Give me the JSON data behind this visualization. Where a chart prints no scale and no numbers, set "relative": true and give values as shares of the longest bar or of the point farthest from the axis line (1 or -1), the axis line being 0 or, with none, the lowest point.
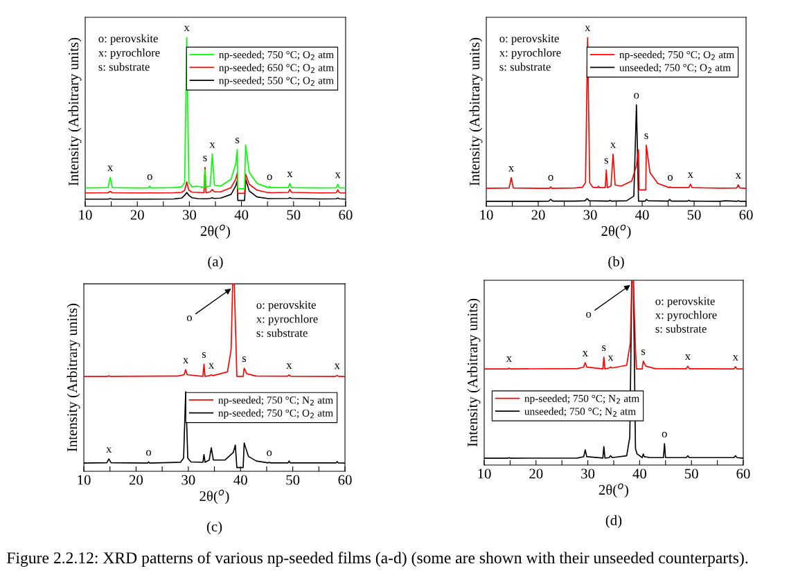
{
  "chart_data": [
    {
      "type": "line",
      "relative": true,
      "xlabel": "2θ($^{o}$)",
      "ylabel": "Intensity (Arbitrary units)",
      "xlim": [
        10,
        60
      ],
      "xticks": [
        10,
        {
          "value": 15,
          "label": null
        },
        20,
        {
          "value": 25,
          "label": null
        },
        30,
        {
          "value": 35,
          "label": null
        },
        40,
        {
          "value": 45,
          "label": null
        },
        50,
        {
          "value": 55,
          "label": null
        },
        60
      ],
      "legend": "top right",
      "series": [
        {
          "name": "np-seeded; 750 °C; O$_{2}$ atm",
          "color": "#00ff00",
          "x": [
            10,
            14.4,
            14.8,
            15.2,
            20,
            22.2,
            22.4,
            22.6,
            27,
            28.5,
            29.1,
            29.5,
            29.9,
            30.5,
            31.6,
            32.8,
            33.0,
            33.2,
            34.0,
            34.4,
            34.8,
            36,
            38.0,
            38.9,
            39.2,
            39.3,
            40.6,
            40.8,
            41.5,
            43,
            45.2,
            45.4,
            45.6,
            49.0,
            49.3,
            49.6,
            55,
            58.2,
            58.5,
            58.8,
            60
          ],
          "values": [
            0.108,
            0.11,
            0.171,
            0.11,
            0.108,
            0.108,
            0.119,
            0.108,
            0.11,
            0.115,
            0.14,
            1.0,
            0.14,
            0.115,
            0.118,
            0.112,
            0.217,
            0.113,
            0.12,
            0.309,
            0.125,
            0.12,
            0.16,
            0.25,
            0.336,
            0.103,
            0.103,
            0.363,
            0.2,
            0.135,
            0.11,
            0.118,
            0.11,
            0.11,
            0.135,
            0.11,
            0.108,
            0.109,
            0.13,
            0.109,
            0.108
          ]
        },
        {
          "name": "np-seeded; 650 °C; O$_{2}$ atm",
          "color": "#ff0000",
          "x": [
            10,
            14.4,
            14.8,
            15.2,
            20,
            22.2,
            22.4,
            22.6,
            27,
            28.5,
            29.1,
            29.5,
            29.9,
            30.5,
            31.6,
            32.8,
            33.0,
            33.2,
            34.0,
            34.4,
            34.8,
            36,
            38.0,
            38.9,
            39.2,
            39.3,
            40.6,
            40.8,
            41.5,
            43,
            45.2,
            45.4,
            45.6,
            49.0,
            49.3,
            49.6,
            55,
            58.2,
            58.5,
            58.8,
            60
          ],
          "values": [
            0.079,
            0.08,
            0.088,
            0.08,
            0.079,
            0.079,
            0.08,
            0.079,
            0.08,
            0.082,
            0.095,
            0.144,
            0.095,
            0.083,
            0.082,
            0.08,
            0.23,
            0.08,
            0.085,
            0.099,
            0.085,
            0.085,
            0.11,
            0.16,
            0.197,
            0.076,
            0.076,
            0.19,
            0.13,
            0.095,
            0.08,
            0.082,
            0.08,
            0.082,
            0.1,
            0.082,
            0.079,
            0.08,
            0.097,
            0.08,
            0.079
          ]
        },
        {
          "name": "np-seeded; 550 °C; O$_{2}$ atm",
          "color": "#000000",
          "x": [
            10,
            14.4,
            14.8,
            15.2,
            20,
            22.2,
            22.4,
            22.6,
            27,
            28.5,
            29.1,
            29.5,
            29.9,
            30.5,
            31.6,
            32.8,
            33.0,
            33.2,
            34.0,
            34.4,
            34.8,
            36,
            38.0,
            38.9,
            39.2,
            39.3,
            40.6,
            40.8,
            41.5,
            43,
            45.2,
            45.4,
            45.6,
            49.0,
            49.3,
            49.6,
            55,
            58.2,
            58.5,
            58.8,
            60
          ],
          "values": [
            0.042,
            0.042,
            0.045,
            0.042,
            0.042,
            0.042,
            0.043,
            0.042,
            0.043,
            0.048,
            0.065,
            0.081,
            0.065,
            0.05,
            0.045,
            0.044,
            0.044,
            0.044,
            0.046,
            0.05,
            0.046,
            0.048,
            0.07,
            0.12,
            0.153,
            0.034,
            0.034,
            0.16,
            0.09,
            0.055,
            0.045,
            0.045,
            0.045,
            0.046,
            0.05,
            0.046,
            0.043,
            0.044,
            0.048,
            0.044,
            0.042
          ]
        }
      ],
      "annotations": [
        "o: perovskite",
        "x: pyrochlore",
        "s: substrate",
        "(a)",
        {
          "text": "x",
          "x": 14.8,
          "y": 0.171
        },
        {
          "text": "o",
          "x": 22.4,
          "y": 0.119
        },
        {
          "text": "x",
          "x": 29.5,
          "y": 1.0
        },
        {
          "text": "s",
          "x": 33.0,
          "y": 0.23
        },
        {
          "text": "x",
          "x": 34.4,
          "y": 0.309
        },
        {
          "text": "s",
          "x": 39.2,
          "y": 0.336
        },
        {
          "text": "o",
          "x": 45.4,
          "y": 0.118
        },
        {
          "text": "x",
          "x": 49.3,
          "y": 0.135
        },
        {
          "text": "x",
          "x": 58.5,
          "y": 0.13
        }
      ]
    },
    {
      "type": "line",
      "relative": true,
      "xlabel": "2θ($^{o}$)",
      "ylabel": "Intensity (Arbitrary units)",
      "xlim": [
        10,
        60
      ],
      "xticks": [
        10,
        {
          "value": 15,
          "label": null
        },
        20,
        {
          "value": 25,
          "label": null
        },
        30,
        {
          "value": 35,
          "label": null
        },
        40,
        {
          "value": 45,
          "label": null
        },
        50,
        {
          "value": 55,
          "label": null
        },
        60
      ],
      "legend": "top right",
      "series": [
        {
          "name": "np-seeded; 750 °C; O$_{2}$ atm",
          "color": "#ff0000",
          "x": [
            10,
            14.4,
            14.8,
            15.2,
            20,
            22.2,
            22.4,
            22.6,
            27,
            28.5,
            29.1,
            29.5,
            29.9,
            30.5,
            31.4,
            31.6,
            31.8,
            32.9,
            33.1,
            33.3,
            34.0,
            34.4,
            34.8,
            36,
            38.0,
            38.9,
            39.3,
            39.4,
            40.7,
            40.8,
            41.5,
            43,
            45.2,
            45.4,
            45.6,
            49.0,
            49.3,
            49.6,
            55,
            58.2,
            58.5,
            58.8,
            60
          ],
          "values": [
            0.106,
            0.108,
            0.169,
            0.108,
            0.106,
            0.106,
            0.115,
            0.106,
            0.108,
            0.112,
            0.14,
            1.0,
            0.14,
            0.112,
            0.11,
            0.118,
            0.11,
            0.11,
            0.215,
            0.11,
            0.12,
            0.308,
            0.125,
            0.12,
            0.15,
            0.24,
            0.335,
            0.097,
            0.097,
            0.362,
            0.2,
            0.135,
            0.11,
            0.115,
            0.11,
            0.11,
            0.131,
            0.11,
            0.107,
            0.108,
            0.127,
            0.108,
            0.106
          ]
        },
        {
          "name": "unseeded; 750 °C; O$_{2}$ atm",
          "color": "#000000",
          "x": [
            10,
            20,
            22.0,
            22.4,
            22.8,
            27,
            29.0,
            29.4,
            29.8,
            33.5,
            33.8,
            34.1,
            37,
            38.4,
            38.9,
            39.3,
            40,
            40.6,
            40.8,
            41.2,
            45.0,
            45.3,
            45.6,
            48.7,
            49.0,
            49.3,
            55,
            56,
            58.3,
            58.5,
            58.7,
            60
          ],
          "values": [
            0.029,
            0.029,
            0.03,
            0.04,
            0.03,
            0.03,
            0.032,
            0.045,
            0.032,
            0.03,
            0.035,
            0.03,
            0.032,
            0.06,
            0.601,
            0.03,
            0.03,
            0.03,
            0.04,
            0.032,
            0.03,
            0.04,
            0.03,
            0.03,
            0.035,
            0.03,
            0.029,
            0.032,
            0.029,
            0.033,
            0.029,
            0.029
          ]
        }
      ],
      "annotations": [
        "o: perovskite",
        "x: pyrochlore",
        "s: substrate",
        "(b)",
        {
          "text": "x",
          "x": 14.8,
          "y": 0.169
        },
        {
          "text": "o",
          "x": 22.4,
          "y": 0.115
        },
        {
          "text": "x",
          "x": 29.5,
          "y": 1.0
        },
        {
          "text": "s",
          "x": 33.1,
          "y": 0.215
        },
        {
          "text": "x",
          "x": 34.4,
          "y": 0.308
        },
        {
          "text": "o",
          "x": 38.9,
          "y": 0.601
        },
        {
          "text": "s",
          "x": 40.8,
          "y": 0.362
        },
        {
          "text": "o",
          "x": 45.4,
          "y": 0.115
        },
        {
          "text": "x",
          "x": 49.3,
          "y": 0.131
        },
        {
          "text": "x",
          "x": 58.5,
          "y": 0.127
        }
      ]
    },
    {
      "type": "line",
      "relative": true,
      "xlabel": "2θ($^{o}$)",
      "ylabel": "Intensity (Arbitrary units)",
      "xlim": [
        10,
        60
      ],
      "xticks": [
        10,
        {
          "value": 15,
          "label": null
        },
        20,
        {
          "value": 25,
          "label": null
        },
        30,
        {
          "value": 35,
          "label": null
        },
        40,
        {
          "value": 45,
          "label": null
        },
        50,
        {
          "value": 55,
          "label": null
        },
        60
      ],
      "legend": "right",
      "series": [
        {
          "name": "np-seeded; 750 °C; N$_{2}$ atm",
          "color": "#ff0000",
          "x": [
            10,
            14.6,
            14.8,
            15.0,
            28,
            29.2,
            29.5,
            29.8,
            32.8,
            33.0,
            33.2,
            34.1,
            34.4,
            34.7,
            37.5,
            38.2,
            38.5,
            38.8,
            39.2,
            39.3,
            40.5,
            40.7,
            41.2,
            43,
            49.0,
            49.3,
            49.6,
            58.2,
            58.5,
            58.8,
            60
          ],
          "values": [
            0.506,
            0.506,
            0.51,
            0.506,
            0.508,
            0.515,
            0.542,
            0.515,
            0.506,
            0.572,
            0.506,
            0.51,
            0.515,
            0.51,
            0.53,
            0.65,
            1.0,
            1.0,
            0.61,
            0.506,
            0.506,
            0.55,
            0.52,
            0.508,
            0.507,
            0.514,
            0.507,
            0.506,
            0.512,
            0.506,
            0.506
          ]
        },
        {
          "name": "np-seeded; 750 °C; O$_{2}$ atm",
          "color": "#000000",
          "x": [
            10,
            14.4,
            14.8,
            15.2,
            22.2,
            22.4,
            22.6,
            28.5,
            29.1,
            29.5,
            29.9,
            30.5,
            32.8,
            33.0,
            33.2,
            34.0,
            34.4,
            34.8,
            37,
            38.6,
            39.0,
            39.3,
            40.5,
            40.7,
            41.5,
            43,
            45.3,
            45.5,
            45.7,
            49.1,
            49.3,
            49.5,
            58.3,
            58.5,
            58.7,
            60
          ],
          "values": [
            0.044,
            0.046,
            0.066,
            0.046,
            0.044,
            0.05,
            0.044,
            0.048,
            0.07,
            0.424,
            0.07,
            0.05,
            0.048,
            0.089,
            0.048,
            0.06,
            0.125,
            0.06,
            0.06,
            0.1,
            0.14,
            0.02,
            0.02,
            0.151,
            0.08,
            0.055,
            0.045,
            0.048,
            0.045,
            0.045,
            0.055,
            0.045,
            0.045,
            0.052,
            0.045,
            0.044
          ]
        }
      ],
      "annotations": [
        "o: perovskite",
        "x: pyrochlore",
        "s: substrate",
        "(c)",
        {
          "text": "o",
          "x": 38.5,
          "y": 1.0
        },
        {
          "text": "x",
          "x": 29.5,
          "y": 0.542
        },
        {
          "text": "s",
          "x": 33.0,
          "y": 0.572
        },
        {
          "text": "x",
          "x": 34.4,
          "y": 0.515
        },
        {
          "text": "s",
          "x": 40.7,
          "y": 0.55
        },
        {
          "text": "x",
          "x": 49.3,
          "y": 0.514
        },
        {
          "text": "x",
          "x": 58.5,
          "y": 0.512
        },
        {
          "text": "x",
          "x": 14.8,
          "y": 0.066
        },
        {
          "text": "o",
          "x": 22.4,
          "y": 0.05
        },
        {
          "text": "o",
          "x": 45.5,
          "y": 0.048
        }
      ]
    },
    {
      "type": "line",
      "relative": true,
      "xlabel": "2θ($^{o}$)",
      "ylabel": "Intensity (Arbitrary units)",
      "xlim": [
        10,
        60
      ],
      "xticks": [
        10,
        {
          "value": 15,
          "label": null
        },
        20,
        {
          "value": 25,
          "label": null
        },
        30,
        {
          "value": 35,
          "label": null
        },
        40,
        {
          "value": 45,
          "label": null
        },
        50,
        {
          "value": 55,
          "label": null
        },
        60
      ],
      "legend": "left",
      "series": [
        {
          "name": "np-seeded; 750 °C; N$_{2}$ atm",
          "color": "#ff0000",
          "x": [
            10,
            14.6,
            14.8,
            15.0,
            28,
            29.2,
            29.5,
            29.8,
            32.9,
            33.1,
            33.3,
            34.1,
            34.4,
            34.7,
            37.5,
            38.2,
            38.5,
            38.8,
            39.2,
            39.4,
            40.5,
            40.7,
            41.2,
            43,
            49.0,
            49.3,
            49.6,
            58.2,
            58.5,
            58.8,
            60
          ],
          "values": [
            0.52,
            0.52,
            0.525,
            0.52,
            0.522,
            0.53,
            0.554,
            0.53,
            0.52,
            0.584,
            0.52,
            0.525,
            0.53,
            0.525,
            0.54,
            0.66,
            1.0,
            1.0,
            0.625,
            0.52,
            0.52,
            0.562,
            0.535,
            0.522,
            0.521,
            0.535,
            0.521,
            0.52,
            0.532,
            0.52,
            0.52
          ]
        },
        {
          "name": "unseeded; 750 °C; N$_{2}$ atm",
          "color": "#000000",
          "x": [
            10,
            14.6,
            14.8,
            15.0,
            28,
            29.2,
            29.5,
            29.8,
            32.9,
            33.1,
            33.3,
            34.1,
            34.4,
            34.7,
            37.5,
            38.1,
            38.5,
            38.8,
            39.2,
            39.5,
            40.5,
            40.7,
            40.9,
            42,
            44.6,
            44.8,
            45.0,
            49.0,
            49.3,
            49.6,
            58.2,
            58.5,
            58.8,
            60
          ],
          "values": [
            0.037,
            0.037,
            0.04,
            0.037,
            0.038,
            0.045,
            0.082,
            0.045,
            0.038,
            0.1,
            0.038,
            0.04,
            0.05,
            0.04,
            0.05,
            0.15,
            1.0,
            1.0,
            0.09,
            0.06,
            0.04,
            0.06,
            0.045,
            0.04,
            0.04,
            0.116,
            0.04,
            0.04,
            0.05,
            0.04,
            0.04,
            0.05,
            0.04,
            0.037
          ]
        }
      ],
      "annotations": [
        "o: perovskite",
        "x: pyrochlore",
        "s: substrate",
        "(d)",
        "Figure 2.2.12: XRD patterns of various np-seeded films (a-d) (some are shown with their unseeded counterparts).",
        {
          "text": "o",
          "x": 38.5,
          "y": 1.0
        },
        {
          "text": "x",
          "x": 14.8,
          "y": 0.525
        },
        {
          "text": "x",
          "x": 29.5,
          "y": 0.554
        },
        {
          "text": "s",
          "x": 33.1,
          "y": 0.584
        },
        {
          "text": "x",
          "x": 34.4,
          "y": 0.53
        },
        {
          "text": "s",
          "x": 40.7,
          "y": 0.562
        },
        {
          "text": "x",
          "x": 49.3,
          "y": 0.535
        },
        {
          "text": "x",
          "x": 58.5,
          "y": 0.532
        },
        {
          "text": "o",
          "x": 44.8,
          "y": 0.116
        }
      ]
    }
  ]
}
